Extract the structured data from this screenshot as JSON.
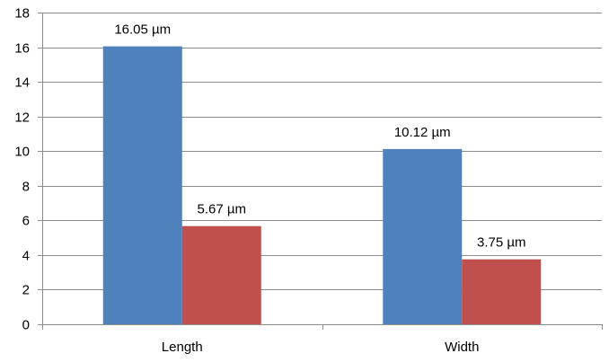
{
  "chart_data": {
    "type": "bar",
    "categories": [
      "Length",
      "Width"
    ],
    "series": [
      {
        "color": "#4f81bd",
        "values": [
          16.05,
          10.12
        ],
        "labels": [
          "16.05 µm",
          "10.12 µm"
        ]
      },
      {
        "color": "#c0504d",
        "values": [
          5.67,
          3.75
        ],
        "labels": [
          "5.67 µm",
          "3.75 µm"
        ]
      }
    ],
    "title": "",
    "xlabel": "",
    "ylabel": "",
    "ylim": [
      0,
      18
    ],
    "yticks": [
      "0",
      "2",
      "4",
      "6",
      "8",
      "10",
      "12",
      "14",
      "16",
      "18"
    ],
    "grid": true,
    "legend": "none"
  }
}
